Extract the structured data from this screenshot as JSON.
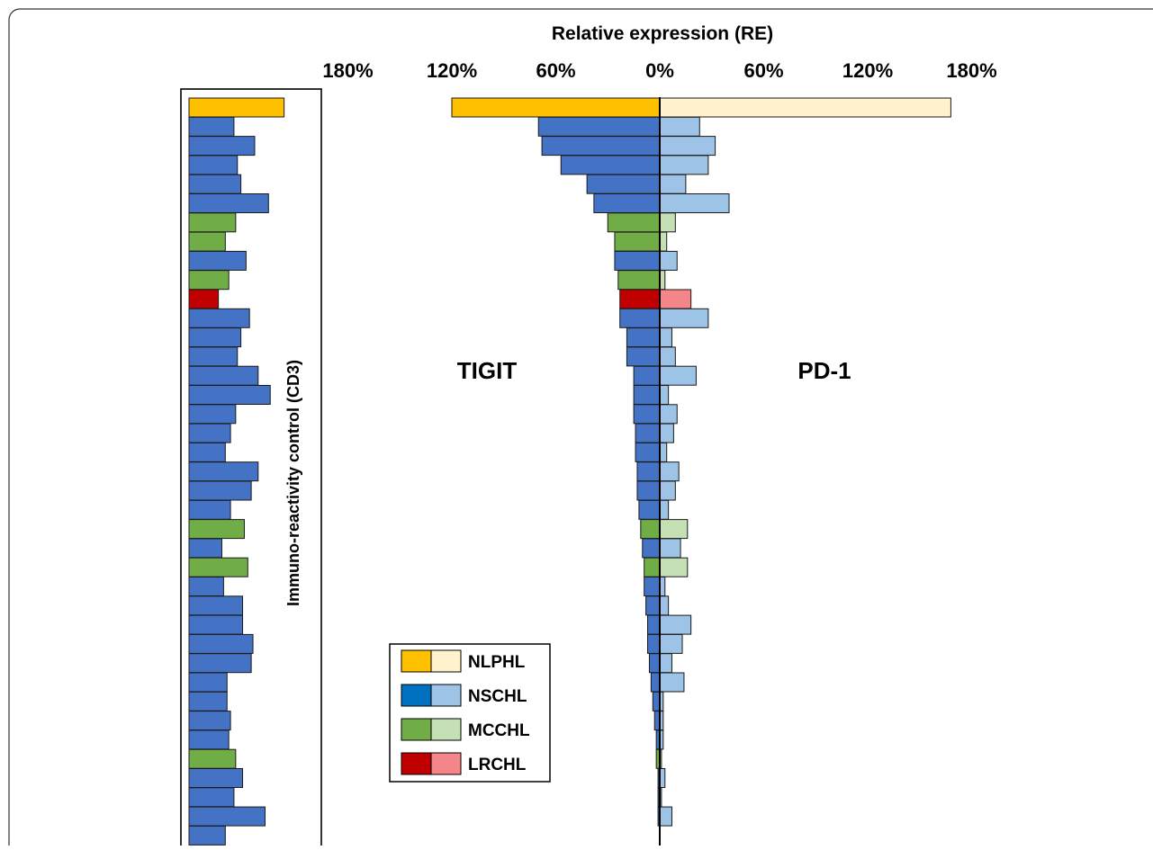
{
  "chart_data": {
    "type": "bar",
    "title": "",
    "xlabel": "Relative expression (RE)",
    "tick_labels": [
      "180%",
      "120%",
      "60%",
      "0%",
      "60%",
      "120%",
      "180%"
    ],
    "xlim": [
      -180,
      180
    ],
    "left_panel_label": "TIGIT",
    "right_panel_label": "PD-1",
    "control_label": "Immuno-reactivity control (CD3)",
    "legend": [
      {
        "label": "NLPHL",
        "dark": "#ffc000",
        "light": "#fff2cc"
      },
      {
        "label": "NSCHL",
        "dark": "#0070c0",
        "light": "#9dc3e6"
      },
      {
        "label": "MCCHL",
        "dark": "#70ad47",
        "light": "#c5e0b4"
      },
      {
        "label": "LRCHL",
        "dark": "#c00000",
        "light": "#f4868a"
      }
    ],
    "bar_colors": {
      "NLPHL": {
        "dark": "#ffc000",
        "light": "#fff2cc"
      },
      "NSCHL": {
        "dark": "#4472c4",
        "light": "#9dc3e6"
      },
      "MCCHL": {
        "dark": "#70ad47",
        "light": "#c5e0b4"
      },
      "LRCHL": {
        "dark": "#c00000",
        "light": "#f4868a"
      }
    },
    "series_names": [
      "TIGIT",
      "PD-1",
      "Immuno-reactivity control (CD3)"
    ],
    "cases": [
      {
        "type": "NLPHL",
        "tigit": 120,
        "pd1": 168,
        "cd3": 55
      },
      {
        "type": "NSCHL",
        "tigit": 70,
        "pd1": 23,
        "cd3": 26
      },
      {
        "type": "NSCHL",
        "tigit": 68,
        "pd1": 32,
        "cd3": 38
      },
      {
        "type": "NSCHL",
        "tigit": 57,
        "pd1": 28,
        "cd3": 28
      },
      {
        "type": "NSCHL",
        "tigit": 42,
        "pd1": 15,
        "cd3": 30
      },
      {
        "type": "NSCHL",
        "tigit": 38,
        "pd1": 40,
        "cd3": 46
      },
      {
        "type": "MCCHL",
        "tigit": 30,
        "pd1": 9,
        "cd3": 27
      },
      {
        "type": "MCCHL",
        "tigit": 26,
        "pd1": 4,
        "cd3": 21
      },
      {
        "type": "NSCHL",
        "tigit": 26,
        "pd1": 10,
        "cd3": 33
      },
      {
        "type": "MCCHL",
        "tigit": 24,
        "pd1": 3,
        "cd3": 23
      },
      {
        "type": "LRCHL",
        "tigit": 23,
        "pd1": 18,
        "cd3": 17
      },
      {
        "type": "NSCHL",
        "tigit": 23,
        "pd1": 28,
        "cd3": 35
      },
      {
        "type": "NSCHL",
        "tigit": 19,
        "pd1": 7,
        "cd3": 30
      },
      {
        "type": "NSCHL",
        "tigit": 19,
        "pd1": 9,
        "cd3": 28
      },
      {
        "type": "NSCHL",
        "tigit": 15,
        "pd1": 21,
        "cd3": 40
      },
      {
        "type": "NSCHL",
        "tigit": 15,
        "pd1": 5,
        "cd3": 47
      },
      {
        "type": "NSCHL",
        "tigit": 15,
        "pd1": 10,
        "cd3": 27
      },
      {
        "type": "NSCHL",
        "tigit": 14,
        "pd1": 8,
        "cd3": 24
      },
      {
        "type": "NSCHL",
        "tigit": 14,
        "pd1": 4,
        "cd3": 21
      },
      {
        "type": "NSCHL",
        "tigit": 13,
        "pd1": 11,
        "cd3": 40
      },
      {
        "type": "NSCHL",
        "tigit": 13,
        "pd1": 9,
        "cd3": 36
      },
      {
        "type": "NSCHL",
        "tigit": 12,
        "pd1": 5,
        "cd3": 24
      },
      {
        "type": "MCCHL",
        "tigit": 11,
        "pd1": 16,
        "cd3": 32
      },
      {
        "type": "NSCHL",
        "tigit": 10,
        "pd1": 12,
        "cd3": 19
      },
      {
        "type": "MCCHL",
        "tigit": 9,
        "pd1": 16,
        "cd3": 34
      },
      {
        "type": "NSCHL",
        "tigit": 9,
        "pd1": 3,
        "cd3": 20
      },
      {
        "type": "NSCHL",
        "tigit": 8,
        "pd1": 5,
        "cd3": 31
      },
      {
        "type": "NSCHL",
        "tigit": 7,
        "pd1": 18,
        "cd3": 31
      },
      {
        "type": "NSCHL",
        "tigit": 7,
        "pd1": 13,
        "cd3": 37
      },
      {
        "type": "NSCHL",
        "tigit": 6,
        "pd1": 7,
        "cd3": 36
      },
      {
        "type": "NSCHL",
        "tigit": 5,
        "pd1": 14,
        "cd3": 22
      },
      {
        "type": "NSCHL",
        "tigit": 4,
        "pd1": 2,
        "cd3": 22
      },
      {
        "type": "NSCHL",
        "tigit": 3,
        "pd1": 2,
        "cd3": 24
      },
      {
        "type": "NSCHL",
        "tigit": 2,
        "pd1": 2,
        "cd3": 23
      },
      {
        "type": "MCCHL",
        "tigit": 2,
        "pd1": 1,
        "cd3": 27
      },
      {
        "type": "NSCHL",
        "tigit": 1,
        "pd1": 3,
        "cd3": 31
      },
      {
        "type": "NSCHL",
        "tigit": 1,
        "pd1": 1,
        "cd3": 26
      },
      {
        "type": "NSCHL",
        "tigit": 1,
        "pd1": 7,
        "cd3": 44
      },
      {
        "type": "NSCHL",
        "tigit": 0,
        "pd1": 0,
        "cd3": 21
      }
    ]
  }
}
